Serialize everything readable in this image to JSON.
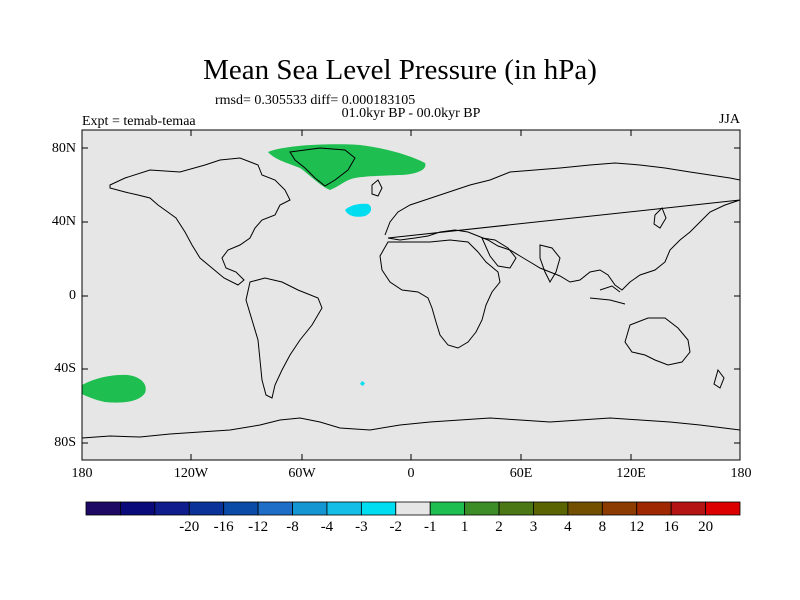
{
  "title": "Mean Sea Level Pressure (in hPa)",
  "stats": "rmsd= 0.305533 diff= 0.000183105",
  "period": "01.0kyr BP - 00.0kyr BP",
  "experiment": "Expt = temab-temaa",
  "season": "JJA",
  "lat_labels": [
    "80N",
    "40N",
    "0",
    "40S",
    "80S"
  ],
  "lon_labels": [
    "180",
    "120W",
    "60W",
    "0",
    "60E",
    "120E",
    "180"
  ],
  "colorbar": {
    "colors": [
      "#1e0a64",
      "#0a0a7a",
      "#0f1e8c",
      "#0a3298",
      "#0a4ba8",
      "#1e6ec8",
      "#1496d2",
      "#14bee6",
      "#00dcf0",
      "#e6e6e6",
      "#1ebe50",
      "#3c8c28",
      "#4b7814",
      "#5a6400",
      "#735000",
      "#8c3c00",
      "#a02800",
      "#b41414",
      "#dc0000"
    ],
    "labels": [
      "-20",
      "-16",
      "-12",
      "-8",
      "-4",
      "-3",
      "-2",
      "-1",
      "1",
      "2",
      "3",
      "4",
      "8",
      "12",
      "16",
      "20"
    ]
  },
  "map_colors": {
    "ocean": "#e6e6e6",
    "coast": "#000000",
    "positive_anomaly": "#1ebe50",
    "negative_anomaly": "#00dcf0"
  }
}
